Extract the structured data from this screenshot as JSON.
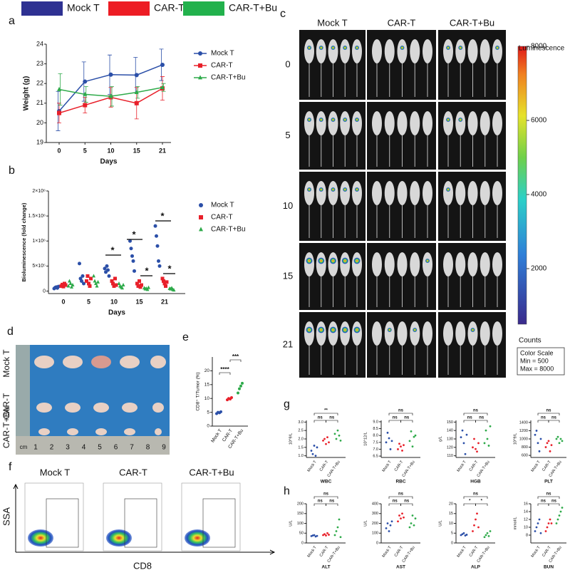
{
  "legend_top": [
    {
      "name": "Mock T",
      "color": "#2e3192"
    },
    {
      "name": "CAR-T",
      "color": "#ed1c24"
    },
    {
      "name": "CAR-T+Bu",
      "color": "#22b14c"
    }
  ],
  "panel_labels": [
    "a",
    "b",
    "c",
    "d",
    "e",
    "f",
    "g",
    "h"
  ],
  "chart_data": [
    {
      "type": "line",
      "categories": [
        "0",
        "5",
        "10",
        "15",
        "21"
      ],
      "x_label": "Days",
      "y_label": "Weight (g)",
      "ylim": [
        19,
        24
      ],
      "yticks": [
        19,
        20,
        21,
        22,
        23,
        24
      ],
      "legend": "upper right",
      "series": [
        {
          "name": "Mock T",
          "color": "#2b4fa8",
          "marker": "circle",
          "values": [
            20.6,
            22.1,
            22.45,
            22.43,
            22.95
          ],
          "errors": [
            1.0,
            1.0,
            1.0,
            0.9,
            0.8
          ]
        },
        {
          "name": "CAR-T",
          "color": "#e8202a",
          "marker": "square",
          "values": [
            20.5,
            20.9,
            21.3,
            21.0,
            21.75
          ],
          "errors": [
            0.5,
            0.4,
            0.5,
            0.8,
            0.6
          ]
        },
        {
          "name": "CAR-T+Bu",
          "color": "#2eaa4a",
          "marker": "triangle",
          "values": [
            21.7,
            21.45,
            21.35,
            21.55,
            21.8
          ],
          "errors": [
            0.8,
            0.4,
            0.5,
            0.3,
            0.2
          ]
        }
      ]
    },
    {
      "type": "strip",
      "categories": [
        "0",
        "5",
        "10",
        "15",
        "21"
      ],
      "x_label": "Days",
      "y_label": "Bioluminescence (fold change)",
      "ylim": [
        -50000,
        2000000
      ],
      "yticks": [
        0,
        {
          "value": 500000,
          "label": "5×10⁵"
        },
        {
          "value": 1000000,
          "label": "1×10⁶"
        },
        {
          "value": 1500000,
          "label": "1.5×10⁶"
        },
        {
          "value": 2000000,
          "label": "2×10⁶"
        }
      ],
      "legend": "upper right",
      "series": [
        {
          "name": "Mock T",
          "color": "#2b4fa8",
          "marker": "circle",
          "values": [
            [
              50000,
              70000,
              80000,
              60000,
              90000
            ],
            [
              550000,
              250000,
              200000,
              300000,
              150000
            ],
            [
              450000,
              380000,
              500000,
              420000,
              300000
            ],
            [
              1000000,
              850000,
              700000,
              600000,
              400000
            ],
            [
              1300000,
              1100000,
              900000,
              600000,
              500000
            ]
          ]
        },
        {
          "name": "CAR-T",
          "color": "#e8202a",
          "marker": "square",
          "values": [
            [
              100000,
              130000,
              90000,
              150000,
              120000
            ],
            [
              200000,
              300000,
              150000,
              100000,
              250000
            ],
            [
              200000,
              150000,
              100000,
              250000,
              120000
            ],
            [
              150000,
              100000,
              200000,
              80000,
              120000
            ],
            [
              250000,
              200000,
              150000,
              100000,
              180000
            ]
          ]
        },
        {
          "name": "CAR-T+Bu",
          "color": "#2eaa4a",
          "marker": "triangle",
          "values": [
            [
              100000,
              200000,
              150000,
              80000,
              120000
            ],
            [
              300000,
              200000,
              150000,
              100000,
              180000
            ],
            [
              150000,
              100000,
              80000,
              60000,
              120000
            ],
            [
              60000,
              40000,
              50000,
              30000,
              70000
            ],
            [
              50000,
              40000,
              60000,
              30000,
              20000
            ]
          ]
        }
      ],
      "annotations": [
        "*",
        "*",
        "*",
        "*",
        "*"
      ]
    },
    {
      "type": "dot",
      "categories": [
        "Mock T",
        "CAR-T",
        "CAR-T+Bu"
      ],
      "colors": [
        "#2b4fa8",
        "#e8202a",
        "#2eaa4a"
      ],
      "y_label": "CD8⁺ T/Tumor (%)",
      "ylim": [
        0,
        25
      ],
      "yticks": [
        0,
        5,
        10,
        15,
        20
      ],
      "values": [
        [
          4.5,
          5.0,
          4.8,
          5.2
        ],
        [
          9.5,
          10.0,
          9.8,
          10.3
        ],
        [
          12.0,
          13.5,
          14.5,
          15.5
        ]
      ],
      "annotations": [
        "****",
        "***"
      ]
    },
    {
      "type": "dot",
      "title": "WBC",
      "categories": [
        "Mock T",
        "CAR-T",
        "CAR-T+Bu"
      ],
      "colors": [
        "#2b4fa8",
        "#e8202a",
        "#2eaa4a"
      ],
      "y_label": "10^9/L",
      "ylim": [
        0.9,
        3.1
      ],
      "yticks": [
        {
          "value": 1,
          "label": "1.0"
        },
        1.5,
        {
          "value": 2,
          "label": "2.0"
        },
        2.5,
        {
          "value": 3,
          "label": "3.0"
        }
      ],
      "values": [
        [
          1.3,
          1.1,
          1.6,
          1.0,
          1.5
        ],
        [
          1.9,
          2.0,
          1.7,
          2.1,
          1.8
        ],
        [
          2.3,
          2.0,
          2.5,
          2.2,
          1.9
        ]
      ],
      "annotations": [
        "**",
        "ns",
        "ns"
      ]
    },
    {
      "type": "dot",
      "title": "RBC",
      "categories": [
        "Mock T",
        "CAR-T",
        "CAR-T+Bu"
      ],
      "colors": [
        "#2b4fa8",
        "#e8202a",
        "#2eaa4a"
      ],
      "y_label": "10^12/L",
      "ylim": [
        6.4,
        9.1
      ],
      "yticks": [
        6.5,
        {
          "value": 7,
          "label": "7.0"
        },
        7.5,
        {
          "value": 8,
          "label": "8.0"
        },
        8.5,
        {
          "value": 9,
          "label": "9.0"
        }
      ],
      "values": [
        [
          7.5,
          8.2,
          7.8,
          7.0,
          7.6
        ],
        [
          7.0,
          7.4,
          7.2,
          6.9,
          7.3
        ],
        [
          7.6,
          8.3,
          7.2,
          7.9,
          8.0
        ]
      ],
      "annotations": [
        "ns",
        "ns",
        "ns"
      ]
    },
    {
      "type": "dot",
      "title": "HGB",
      "categories": [
        "Mock T",
        "CAR-T",
        "CAR-T+Bu"
      ],
      "colors": [
        "#2b4fa8",
        "#e8202a",
        "#2eaa4a"
      ],
      "y_label": "g/L",
      "ylim": [
        108,
        152
      ],
      "yticks": [
        110,
        120,
        130,
        140,
        150
      ],
      "values": [
        [
          132,
          140,
          125,
          112,
          135
        ],
        [
          120,
          130,
          118,
          115,
          125
        ],
        [
          125,
          140,
          130,
          122,
          145
        ]
      ],
      "annotations": [
        "ns",
        "ns",
        "ns"
      ]
    },
    {
      "type": "dot",
      "title": "PLT",
      "categories": [
        "Mock T",
        "CAR-T",
        "CAR-T+Bu"
      ],
      "colors": [
        "#2b4fa8",
        "#e8202a",
        "#2eaa4a"
      ],
      "y_label": "10^9/L",
      "ylim": [
        550,
        1450
      ],
      "yticks": [
        600,
        800,
        1000,
        1200,
        1400
      ],
      "values": [
        [
          1100,
          1200,
          900,
          700,
          1000
        ],
        [
          800,
          900,
          950,
          700,
          850
        ],
        [
          1000,
          1050,
          900,
          1000,
          950
        ]
      ],
      "annotations": [
        "ns",
        "ns",
        "ns"
      ]
    },
    {
      "type": "dot",
      "title": "ALT",
      "categories": [
        "Mock T",
        "CAR-T",
        "CAR-T+Bu"
      ],
      "colors": [
        "#2b4fa8",
        "#e8202a",
        "#2eaa4a"
      ],
      "y_label": "U/L",
      "ylim": [
        0,
        200
      ],
      "yticks": [
        0,
        50,
        100,
        150,
        200
      ],
      "values": [
        [
          35,
          38,
          40,
          33,
          36
        ],
        [
          40,
          45,
          38,
          50,
          42
        ],
        [
          40,
          60,
          80,
          120,
          30
        ]
      ],
      "annotations": [
        "ns",
        "ns",
        "ns"
      ]
    },
    {
      "type": "dot",
      "title": "AST",
      "categories": [
        "Mock T",
        "CAR-T",
        "CAR-T+Bu"
      ],
      "colors": [
        "#2b4fa8",
        "#e8202a",
        "#2eaa4a"
      ],
      "y_label": "U/L",
      "ylim": [
        0,
        400
      ],
      "yticks": [
        0,
        100,
        200,
        300,
        400
      ],
      "values": [
        [
          150,
          200,
          120,
          180,
          220
        ],
        [
          220,
          280,
          250,
          300,
          260
        ],
        [
          160,
          200,
          280,
          180,
          250
        ]
      ],
      "annotations": [
        "ns",
        "ns",
        "ns"
      ]
    },
    {
      "type": "dot",
      "title": "ALP",
      "categories": [
        "Mock T",
        "CAR-T",
        "CAR-T+Bu"
      ],
      "colors": [
        "#2b4fa8",
        "#e8202a",
        "#2eaa4a"
      ],
      "y_label": "U/L",
      "ylim": [
        0,
        20
      ],
      "yticks": [
        0,
        5,
        10,
        15,
        20
      ],
      "values": [
        [
          4,
          4.5,
          5,
          3.8,
          4.2
        ],
        [
          6,
          9,
          12,
          15,
          8
        ],
        [
          3,
          4,
          5,
          3.5,
          6
        ]
      ],
      "annotations": [
        "ns",
        "*",
        "*"
      ]
    },
    {
      "type": "dot",
      "title": "BUN",
      "categories": [
        "Mock T",
        "CAR-T",
        "CAR-T+Bu"
      ],
      "colors": [
        "#2b4fa8",
        "#e8202a",
        "#2eaa4a"
      ],
      "y_label": "mmol/L",
      "ylim": [
        6,
        16
      ],
      "yticks": [
        8,
        10,
        12,
        14,
        16
      ],
      "values": [
        [
          9,
          10,
          11,
          12,
          8.5
        ],
        [
          9,
          10,
          11,
          12,
          11
        ],
        [
          11,
          12,
          13,
          14,
          15
        ]
      ],
      "annotations": [
        "ns",
        "ns",
        "ns"
      ]
    }
  ],
  "imaging": {
    "columns": [
      "Mock T",
      "CAR-T",
      "CAR-T+Bu"
    ],
    "rows": [
      "0",
      "5",
      "10",
      "15",
      "21"
    ],
    "colorbar": {
      "title": "Luminescence",
      "lim": [
        500,
        8000
      ],
      "ticks": [
        2000,
        4000,
        6000,
        8000
      ]
    },
    "counts_label": "Counts",
    "scale_box": [
      "Color Scale",
      "Min = 500",
      "Max = 8000"
    ]
  },
  "photo": {
    "rows": [
      "Mock T",
      "CAR-T",
      "CAR-T+Bu"
    ],
    "ruler_unit": "cm",
    "ruler_numbers": [
      "1",
      "2",
      "3",
      "4",
      "5",
      "6",
      "7",
      "8",
      "9"
    ]
  },
  "flow": {
    "titles": [
      "Mock T",
      "CAR-T",
      "CAR-T+Bu"
    ],
    "x_label": "CD8",
    "y_label": "SSA"
  }
}
